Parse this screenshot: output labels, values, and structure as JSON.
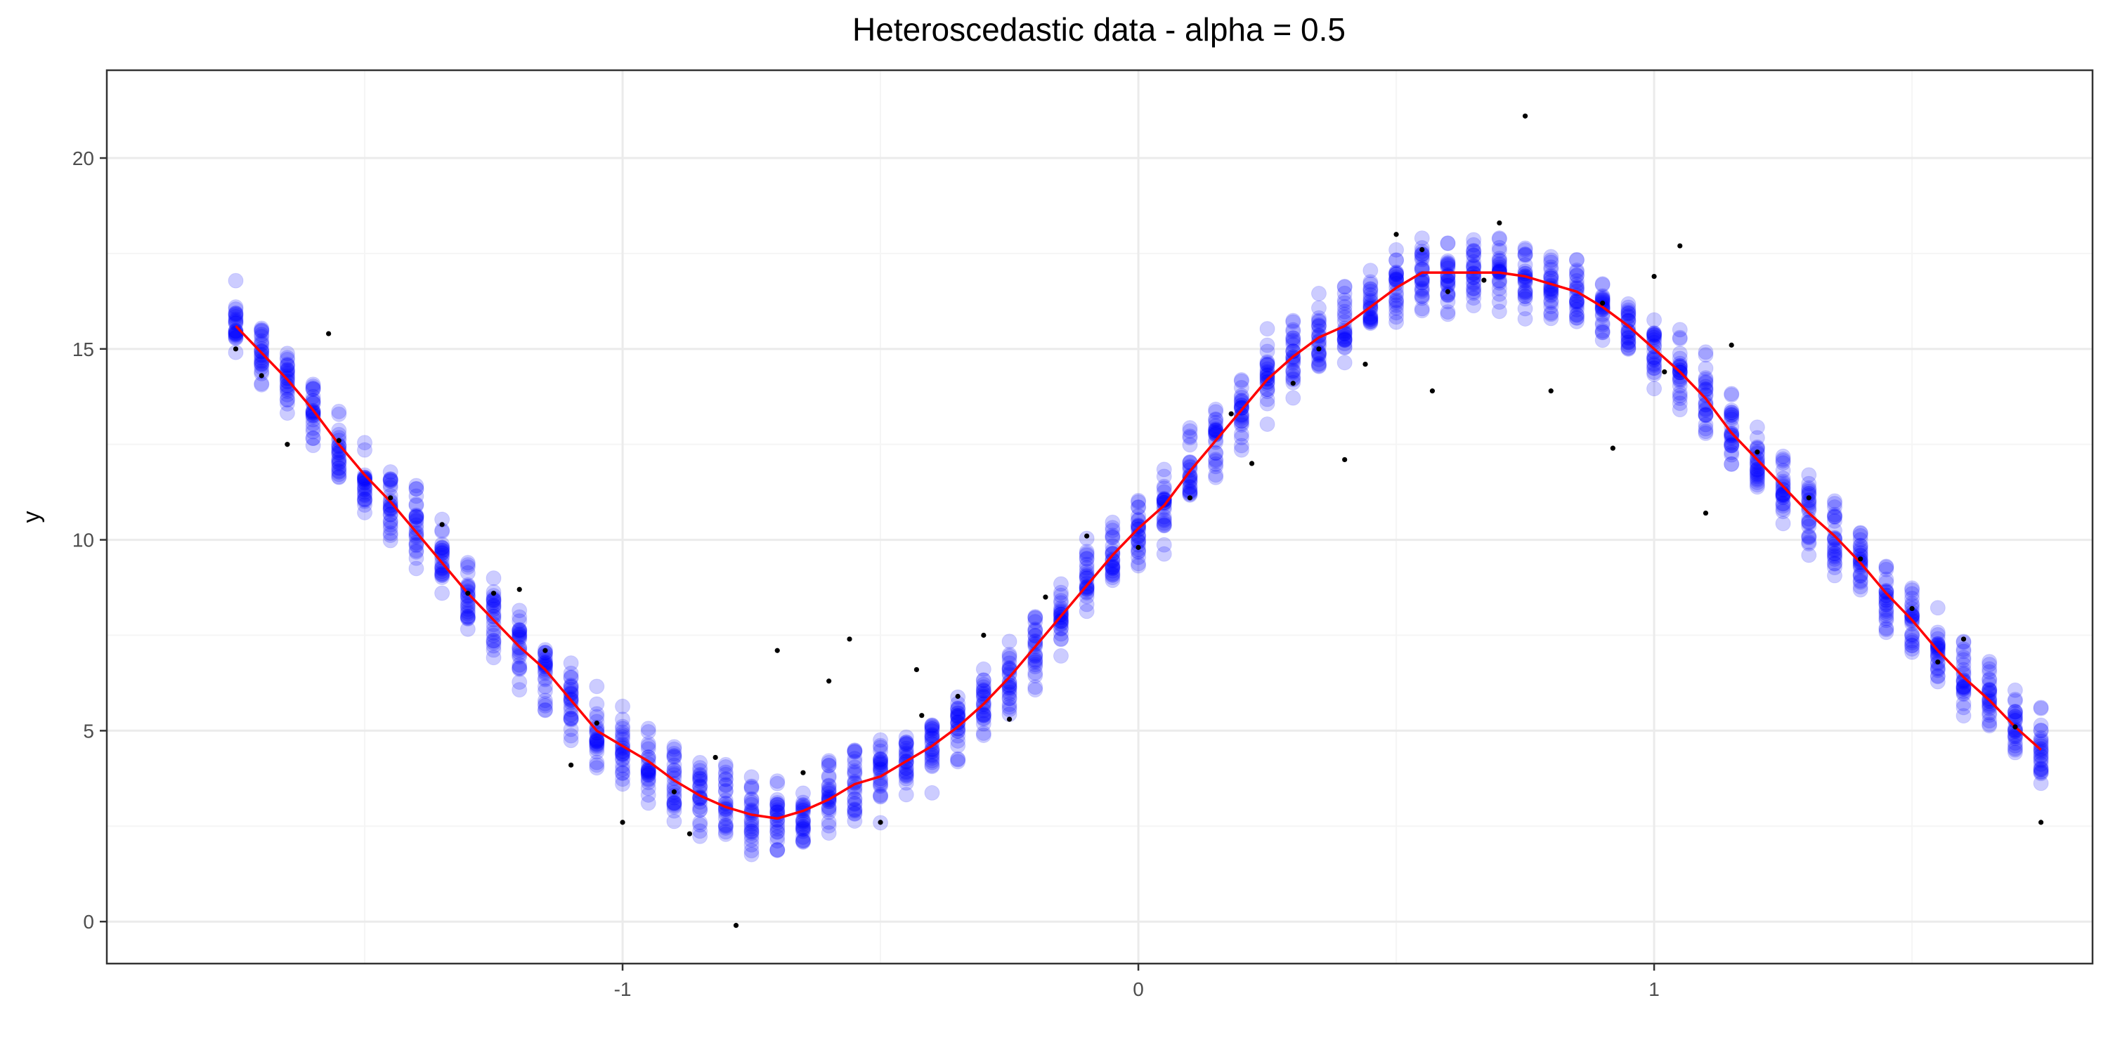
{
  "chart_data": {
    "type": "scatter",
    "title": "Heteroscedastic data - alpha = 0.5",
    "xlabel": "",
    "ylabel": "y",
    "xlim": [
      -2.0,
      1.85
    ],
    "ylim": [
      -1.1,
      22.3
    ],
    "x_ticks": [
      -1,
      0,
      1
    ],
    "y_ticks": [
      0,
      5,
      10,
      15,
      20
    ],
    "grid": true,
    "legend": "none",
    "colors": {
      "samples": "#0000ff",
      "samples_opacity": 0.2,
      "observed": "#000000",
      "fit_line": "#ff0000",
      "grid_major": "#ebebeb",
      "grid_minor": "#f5f5f5",
      "panel_border": "#333333"
    },
    "series": [
      {
        "kind": "simulated-samples",
        "x": [
          -1.75,
          -1.7,
          -1.65,
          -1.6,
          -1.55,
          -1.5,
          -1.45,
          -1.4,
          -1.35,
          -1.3,
          -1.25,
          -1.2,
          -1.15,
          -1.1,
          -1.05,
          -1.0,
          -0.95,
          -0.9,
          -0.85,
          -0.8,
          -0.75,
          -0.7,
          -0.65,
          -0.6,
          -0.55,
          -0.5,
          -0.45,
          -0.4,
          -0.35,
          -0.3,
          -0.25,
          -0.2,
          -0.15,
          -0.1,
          -0.05,
          0.0,
          0.05,
          0.1,
          0.15,
          0.2,
          0.25,
          0.3,
          0.35,
          0.4,
          0.45,
          0.5,
          0.55,
          0.6,
          0.65,
          0.7,
          0.75,
          0.8,
          0.85,
          0.9,
          0.95,
          1.0,
          1.05,
          1.1,
          1.15,
          1.2,
          1.25,
          1.3,
          1.35,
          1.4,
          1.45,
          1.5,
          1.55,
          1.6,
          1.65,
          1.7,
          1.75
        ],
        "center": [
          15.6,
          14.9,
          14.2,
          13.4,
          12.5,
          11.7,
          11.0,
          10.2,
          9.4,
          8.6,
          7.9,
          7.2,
          6.6,
          5.8,
          5.0,
          4.6,
          4.2,
          3.7,
          3.3,
          3.0,
          2.8,
          2.7,
          2.9,
          3.2,
          3.6,
          3.8,
          4.2,
          4.6,
          5.1,
          5.7,
          6.4,
          7.2,
          8.0,
          8.8,
          9.6,
          10.3,
          10.9,
          11.8,
          12.6,
          13.4,
          14.2,
          14.8,
          15.3,
          15.6,
          16.1,
          16.6,
          17.0,
          17.0,
          17.0,
          17.0,
          16.9,
          16.7,
          16.5,
          16.1,
          15.6,
          15.0,
          14.4,
          13.7,
          12.8,
          12.1,
          11.4,
          10.7,
          10.1,
          9.4,
          8.6,
          7.9,
          7.1,
          6.4,
          5.8,
          5.1,
          4.5
        ],
        "spread_low": [
          1.2,
          1.1,
          1.2,
          1.3,
          1.3,
          1.4,
          1.4,
          1.4,
          1.4,
          1.4,
          1.4,
          1.4,
          1.4,
          1.5,
          1.4,
          1.4,
          1.5,
          1.5,
          1.5,
          1.5,
          1.5,
          1.5,
          1.5,
          1.5,
          1.5,
          1.4,
          1.4,
          1.4,
          1.4,
          1.4,
          1.4,
          1.4,
          1.4,
          1.4,
          1.4,
          1.4,
          1.4,
          1.4,
          1.4,
          1.4,
          1.4,
          1.4,
          1.4,
          1.4,
          1.4,
          1.4,
          1.4,
          1.4,
          1.4,
          1.4,
          1.4,
          1.4,
          1.4,
          1.4,
          1.4,
          1.4,
          1.4,
          1.4,
          1.4,
          1.4,
          1.4,
          1.4,
          1.4,
          1.4,
          1.4,
          1.4,
          1.4,
          1.4,
          1.4,
          1.3,
          1.4
        ],
        "spread_high": [
          1.4,
          1.5,
          1.1,
          1.3,
          1.2,
          1.1,
          1.4,
          1.8,
          1.6,
          1.3,
          1.4,
          1.4,
          1.3,
          1.3,
          1.5,
          1.4,
          1.4,
          1.6,
          1.5,
          1.6,
          1.5,
          1.6,
          1.5,
          1.6,
          1.5,
          1.5,
          1.4,
          1.4,
          1.4,
          1.4,
          1.4,
          1.4,
          1.4,
          1.4,
          1.4,
          1.4,
          1.4,
          1.4,
          1.4,
          1.4,
          1.4,
          1.4,
          1.4,
          1.4,
          1.4,
          1.4,
          1.4,
          1.4,
          1.4,
          1.4,
          1.4,
          1.4,
          1.4,
          1.4,
          1.4,
          1.4,
          1.4,
          1.4,
          1.4,
          1.4,
          1.4,
          1.4,
          1.4,
          1.4,
          1.4,
          1.4,
          1.4,
          1.4,
          1.4,
          1.4,
          1.5
        ]
      },
      {
        "kind": "observed",
        "points": [
          [
            -1.75,
            15.0
          ],
          [
            -1.7,
            14.3
          ],
          [
            -1.65,
            12.5
          ],
          [
            -1.57,
            15.4
          ],
          [
            -1.55,
            12.6
          ],
          [
            -1.45,
            11.1
          ],
          [
            -1.35,
            10.4
          ],
          [
            -1.3,
            8.6
          ],
          [
            -1.25,
            8.6
          ],
          [
            -1.2,
            8.7
          ],
          [
            -1.15,
            7.1
          ],
          [
            -1.1,
            4.1
          ],
          [
            -1.05,
            5.2
          ],
          [
            -1.0,
            2.6
          ],
          [
            -0.9,
            3.4
          ],
          [
            -0.87,
            2.3
          ],
          [
            -0.82,
            4.3
          ],
          [
            -0.78,
            -0.1
          ],
          [
            -0.7,
            7.1
          ],
          [
            -0.65,
            3.9
          ],
          [
            -0.6,
            6.3
          ],
          [
            -0.56,
            7.4
          ],
          [
            -0.5,
            2.6
          ],
          [
            -0.43,
            6.6
          ],
          [
            -0.42,
            5.4
          ],
          [
            -0.35,
            5.9
          ],
          [
            -0.3,
            7.5
          ],
          [
            -0.25,
            5.3
          ],
          [
            -0.18,
            8.5
          ],
          [
            -0.1,
            10.1
          ],
          [
            0.0,
            9.8
          ],
          [
            0.1,
            11.1
          ],
          [
            0.18,
            13.3
          ],
          [
            0.22,
            12.0
          ],
          [
            0.3,
            14.1
          ],
          [
            0.35,
            15.0
          ],
          [
            0.4,
            12.1
          ],
          [
            0.44,
            14.6
          ],
          [
            0.5,
            18.0
          ],
          [
            0.55,
            17.6
          ],
          [
            0.57,
            13.9
          ],
          [
            0.6,
            16.5
          ],
          [
            0.67,
            16.8
          ],
          [
            0.7,
            18.3
          ],
          [
            0.75,
            21.1
          ],
          [
            0.8,
            13.9
          ],
          [
            0.9,
            16.2
          ],
          [
            0.92,
            12.4
          ],
          [
            1.0,
            16.9
          ],
          [
            1.02,
            14.4
          ],
          [
            1.05,
            17.7
          ],
          [
            1.1,
            10.7
          ],
          [
            1.15,
            15.1
          ],
          [
            1.2,
            12.3
          ],
          [
            1.3,
            11.1
          ],
          [
            1.4,
            9.5
          ],
          [
            1.5,
            8.2
          ],
          [
            1.55,
            6.8
          ],
          [
            1.6,
            7.4
          ],
          [
            1.7,
            5.1
          ],
          [
            1.75,
            2.6
          ]
        ]
      },
      {
        "kind": "fitted-line",
        "x": [
          -1.75,
          -1.7,
          -1.65,
          -1.6,
          -1.55,
          -1.5,
          -1.45,
          -1.4,
          -1.35,
          -1.3,
          -1.25,
          -1.2,
          -1.15,
          -1.1,
          -1.05,
          -1.0,
          -0.95,
          -0.9,
          -0.85,
          -0.8,
          -0.75,
          -0.7,
          -0.65,
          -0.6,
          -0.55,
          -0.5,
          -0.45,
          -0.4,
          -0.35,
          -0.3,
          -0.25,
          -0.2,
          -0.15,
          -0.1,
          -0.05,
          0.0,
          0.05,
          0.1,
          0.15,
          0.2,
          0.25,
          0.3,
          0.35,
          0.4,
          0.45,
          0.5,
          0.55,
          0.6,
          0.65,
          0.7,
          0.75,
          0.8,
          0.85,
          0.9,
          0.95,
          1.0,
          1.05,
          1.1,
          1.15,
          1.2,
          1.25,
          1.3,
          1.35,
          1.4,
          1.45,
          1.5,
          1.55,
          1.6,
          1.65,
          1.7,
          1.75
        ],
        "y": [
          15.6,
          14.9,
          14.2,
          13.4,
          12.5,
          11.7,
          11.0,
          10.2,
          9.4,
          8.6,
          7.9,
          7.2,
          6.6,
          5.8,
          5.0,
          4.6,
          4.2,
          3.7,
          3.3,
          3.0,
          2.8,
          2.7,
          2.9,
          3.2,
          3.6,
          3.8,
          4.2,
          4.6,
          5.1,
          5.7,
          6.4,
          7.2,
          8.0,
          8.8,
          9.6,
          10.3,
          10.9,
          11.8,
          12.6,
          13.4,
          14.2,
          14.8,
          15.3,
          15.6,
          16.1,
          16.6,
          17.0,
          17.0,
          17.0,
          17.0,
          16.9,
          16.7,
          16.5,
          16.1,
          15.6,
          15.0,
          14.4,
          13.7,
          12.8,
          12.1,
          11.4,
          10.7,
          10.1,
          9.4,
          8.6,
          7.9,
          7.1,
          6.4,
          5.8,
          5.1,
          4.5
        ]
      }
    ]
  }
}
